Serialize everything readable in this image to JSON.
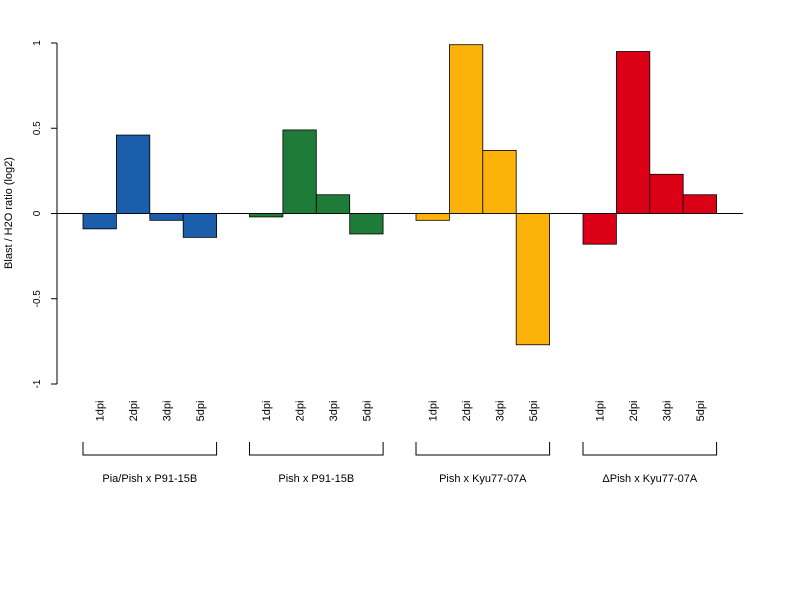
{
  "chart_data": {
    "type": "bar",
    "title": "",
    "xlabel": "",
    "ylabel": "Blast / H2O ratio (log2)",
    "ylim": [
      -1,
      1
    ],
    "yticks": [
      1,
      0.5,
      0,
      -0.5,
      -1
    ],
    "ytick_labels": [
      "1",
      "0.5",
      "0",
      "-0.5",
      "-1"
    ],
    "grid": false,
    "legend": "none",
    "categories": [
      "1dpi",
      "2dpi",
      "3dpi",
      "5dpi"
    ],
    "groups": [
      {
        "label": "Pia/Pish x P91-15B",
        "color": "#1b5fac",
        "values": [
          -0.09,
          0.46,
          -0.04,
          -0.14
        ]
      },
      {
        "label": "Pish x P91-15B",
        "color": "#1f7b38",
        "values": [
          -0.02,
          0.49,
          0.11,
          -0.12
        ]
      },
      {
        "label": "Pish x Kyu77-07A",
        "color": "#fdb20a",
        "values": [
          -0.04,
          0.99,
          0.37,
          -0.77
        ]
      },
      {
        "label": "ΔPish x Kyu77-07A",
        "color": "#dc0017",
        "values": [
          -0.18,
          0.95,
          0.23,
          0.11
        ]
      }
    ]
  }
}
